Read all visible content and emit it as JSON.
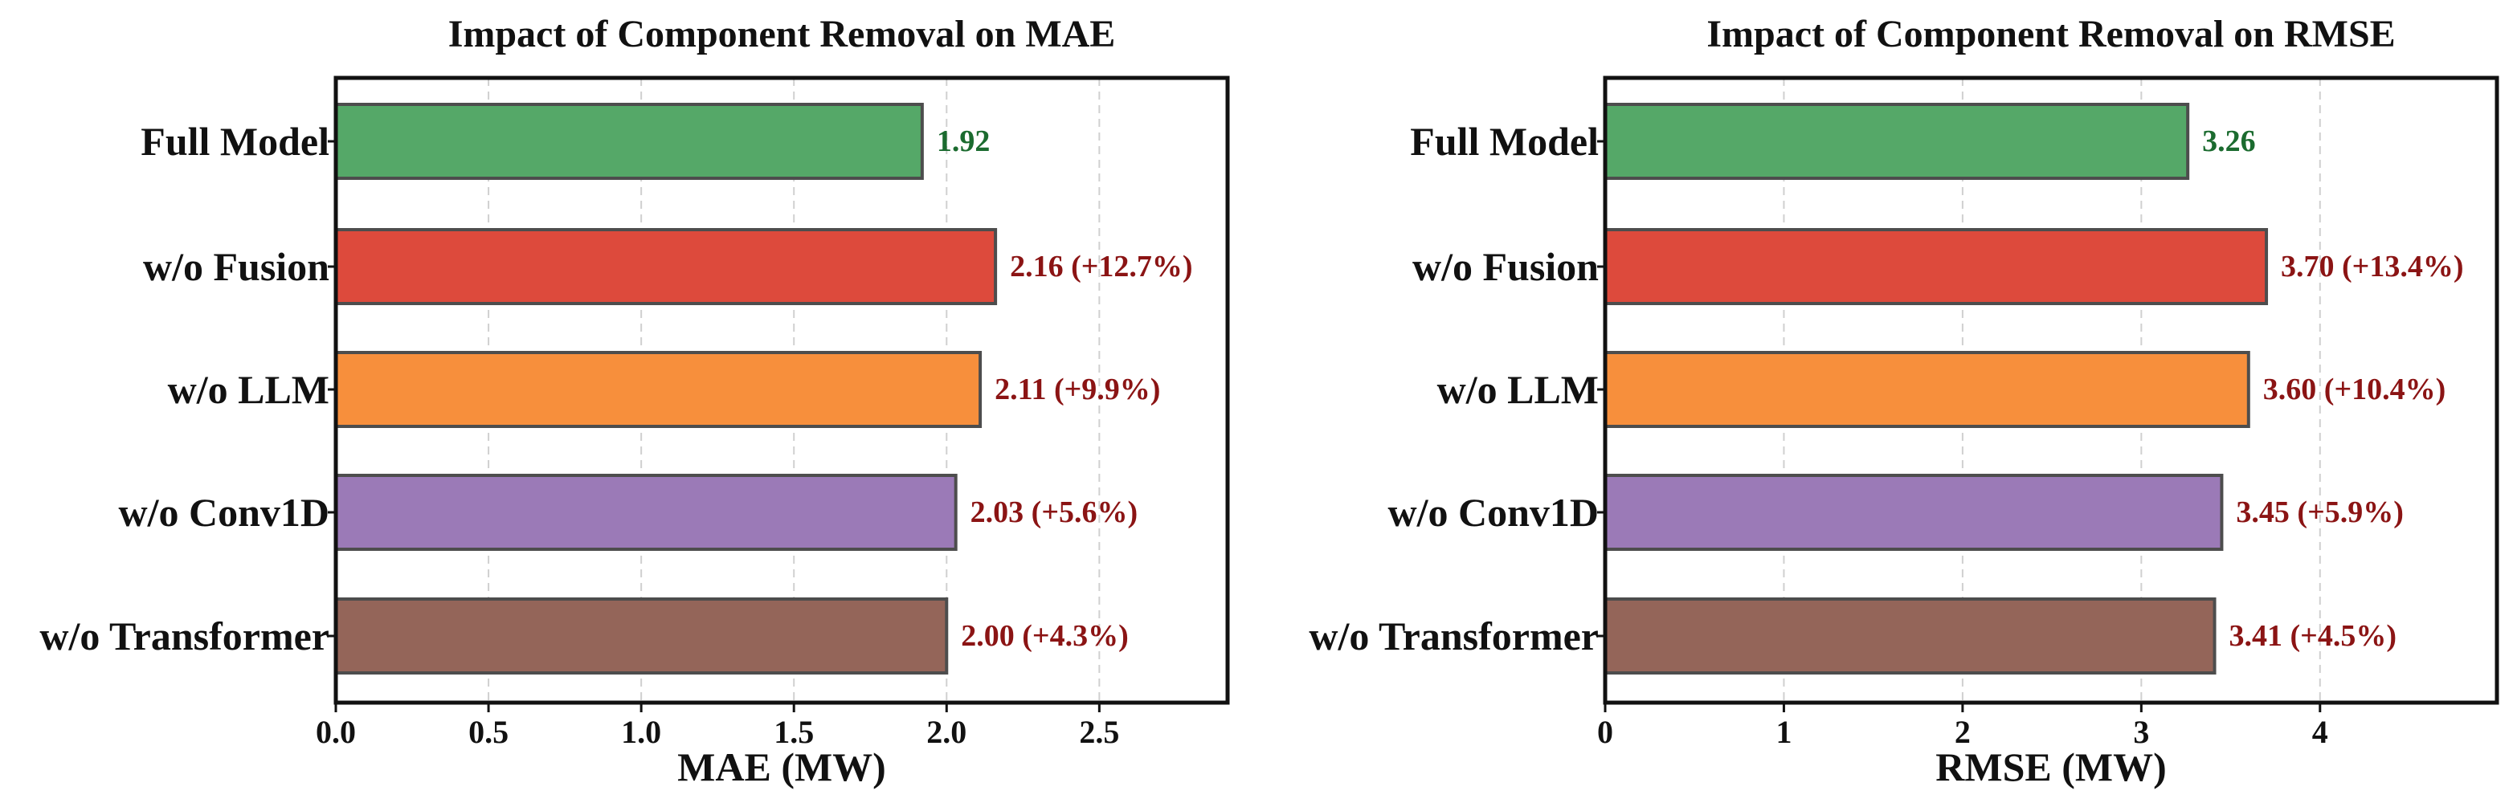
{
  "colors": {
    "full_model": "#55a868",
    "fusion": "#dd4a3c",
    "llm": "#f78f3c",
    "conv1d": "#9b7ab7",
    "transformer": "#946559",
    "baseline_label": "#1b6b2f",
    "delta_label": "#8b1414",
    "bar_edge": "#4d4d4d",
    "grid": "#d0d0d0"
  },
  "chart_data": [
    {
      "type": "bar",
      "orientation": "horizontal",
      "title": "Impact of Component Removal on MAE",
      "xlabel": "MAE (MW)",
      "ylabel": "",
      "categories": [
        "Full Model",
        "w/o Fusion",
        "w/o LLM",
        "w/o Conv1D",
        "w/o Transformer"
      ],
      "values": [
        1.92,
        2.16,
        2.11,
        2.03,
        2.0
      ],
      "bar_labels": [
        "1.92",
        "2.16 (+12.7%)",
        "2.11 (+9.9%)",
        "2.03 (+5.6%)",
        "2.00 (+4.3%)"
      ],
      "bar_colors": [
        "full_model",
        "fusion",
        "llm",
        "conv1d",
        "transformer"
      ],
      "xlim": [
        0,
        2.92
      ],
      "xticks": [
        0.0,
        0.5,
        1.0,
        1.5,
        2.0,
        2.5
      ],
      "xtick_labels": [
        "0.0",
        "0.5",
        "1.0",
        "1.5",
        "2.0",
        "2.5"
      ],
      "grid": "vertical dashed"
    },
    {
      "type": "bar",
      "orientation": "horizontal",
      "title": "Impact of Component Removal on RMSE",
      "xlabel": "RMSE (MW)",
      "ylabel": "",
      "categories": [
        "Full Model",
        "w/o Fusion",
        "w/o LLM",
        "w/o Conv1D",
        "w/o Transformer"
      ],
      "values": [
        3.26,
        3.7,
        3.6,
        3.45,
        3.41
      ],
      "bar_labels": [
        "3.26",
        "3.70 (+13.4%)",
        "3.60 (+10.4%)",
        "3.45 (+5.9%)",
        "3.41 (+4.5%)"
      ],
      "bar_colors": [
        "full_model",
        "fusion",
        "llm",
        "conv1d",
        "transformer"
      ],
      "xlim": [
        0,
        4.99
      ],
      "xticks": [
        0,
        1,
        2,
        3,
        4
      ],
      "xtick_labels": [
        "0",
        "1",
        "2",
        "3",
        "4"
      ],
      "grid": "vertical dashed"
    }
  ]
}
